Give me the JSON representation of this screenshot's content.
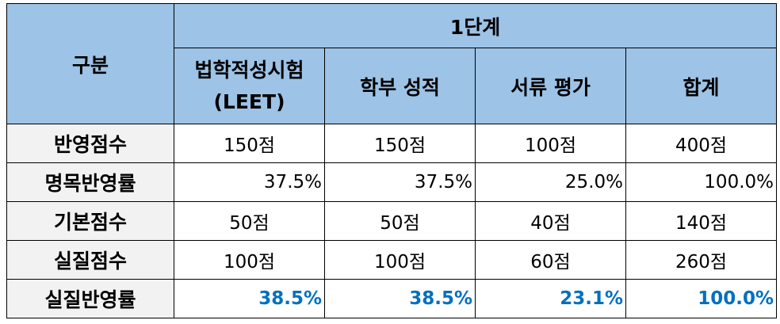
{
  "header": {
    "category": "구분",
    "stage": "1단계",
    "columns": [
      "법학적성시험 (LEET)",
      "학부 성적",
      "서류 평가",
      "합계"
    ]
  },
  "rows": [
    {
      "label": "반영점수",
      "values": [
        "150점",
        "150점",
        "100점",
        "400점"
      ]
    },
    {
      "label": "명목반영률",
      "values": [
        "37.5%",
        "37.5%",
        "25.0%",
        "100.0%"
      ]
    },
    {
      "label": "기본점수",
      "values": [
        "50점",
        "50점",
        "40점",
        "140점"
      ]
    },
    {
      "label": "실질점수",
      "values": [
        "100점",
        "100점",
        "60점",
        "260점"
      ]
    },
    {
      "label": "실질반영률",
      "values": [
        "38.5%",
        "38.5%",
        "23.1%",
        "100.0%"
      ]
    }
  ],
  "colors": {
    "header_bg": "#9dc3e6",
    "label_bg": "#f2f2f2",
    "highlight_text": "#0070c0"
  }
}
